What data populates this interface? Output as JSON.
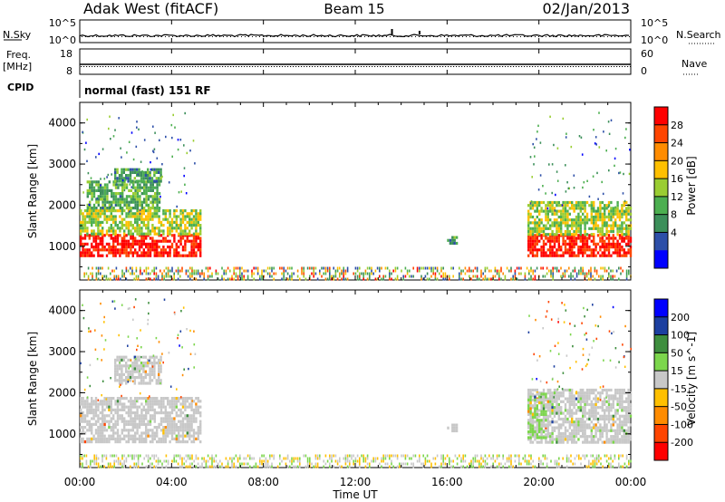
{
  "header": {
    "station": "Adak West (fitACF)",
    "beam": "Beam 15",
    "date": "02/Jan/2013"
  },
  "summary": {
    "nsky": {
      "label": "N.Sky",
      "ticks": [
        "10^5",
        "10^0"
      ]
    },
    "nsearch": {
      "label": "N.Search",
      "ticks": [
        "10^5",
        "10^0"
      ]
    },
    "freq": {
      "label": "Freq.",
      "unit": "[MHz]",
      "ticks": [
        "18",
        "8"
      ]
    },
    "nave": {
      "label": "Nave",
      "ticks": [
        "60",
        "0"
      ]
    },
    "cpid": {
      "label": "CPID",
      "program": "normal (fast) 151 RF"
    }
  },
  "chart_data": [
    {
      "type": "heatmap",
      "name": "power",
      "ylabel": "Slant Range [km]",
      "ylim": [
        180,
        4500
      ],
      "yticks": [
        "1000",
        "2000",
        "3000",
        "4000"
      ],
      "colorbar_label": "Power [dB]",
      "colorbar_ticks": [
        "4",
        "8",
        "12",
        "16",
        "20",
        "24",
        "28"
      ],
      "colorbar_range": [
        0,
        32
      ],
      "colors": [
        "#0000ff",
        "#2d4fa8",
        "#3c8f5a",
        "#4caf50",
        "#9acd32",
        "#ffc000",
        "#ff8c00",
        "#ff4500",
        "#ff0000"
      ],
      "regions": [
        {
          "t": [
            0,
            5.3
          ],
          "r": [
            800,
            1300
          ],
          "level": 30
        },
        {
          "t": [
            0,
            5.3
          ],
          "r": [
            1300,
            1900
          ],
          "level": 16
        },
        {
          "t": [
            0.3,
            3.5
          ],
          "r": [
            1900,
            2600
          ],
          "level": 12
        },
        {
          "t": [
            1.5,
            3.5
          ],
          "r": [
            2600,
            2900
          ],
          "level": 10
        },
        {
          "t": [
            19.5,
            24
          ],
          "r": [
            800,
            1300
          ],
          "level": 30
        },
        {
          "t": [
            19.5,
            24
          ],
          "r": [
            1300,
            2100
          ],
          "level": 16
        },
        {
          "t": [
            16,
            16.4
          ],
          "r": [
            1050,
            1250
          ],
          "level": 10
        }
      ]
    },
    {
      "type": "heatmap",
      "name": "velocity",
      "ylabel": "Slant Range [km]",
      "ylim": [
        180,
        4500
      ],
      "yticks": [
        "1000",
        "2000",
        "3000",
        "4000"
      ],
      "colorbar_label": "Velocity [m s^-1]",
      "colorbar_ticks": [
        "200",
        "100",
        "50",
        "15",
        "-15",
        "-50",
        "-100",
        "-200"
      ],
      "colorbar_range": [
        -250,
        250
      ],
      "colors": [
        "#0000ff",
        "#1c3fa0",
        "#3e8e3e",
        "#7cd64c",
        "#c8c8c8",
        "#ffc000",
        "#ff8c00",
        "#ff4500",
        "#ff0000"
      ],
      "regions": [
        {
          "t": [
            0,
            5.3
          ],
          "r": [
            800,
            1900
          ],
          "value": 0
        },
        {
          "t": [
            1.5,
            3.5
          ],
          "r": [
            2200,
            2900
          ],
          "value": 0
        },
        {
          "t": [
            19.5,
            24
          ],
          "r": [
            800,
            2100
          ],
          "value": 10
        },
        {
          "t": [
            19.5,
            20.3
          ],
          "r": [
            900,
            2000
          ],
          "value": 30
        },
        {
          "t": [
            16,
            16.4
          ],
          "r": [
            1050,
            1250
          ],
          "value": 0
        }
      ]
    }
  ],
  "time_axis": {
    "ticks": [
      "00:00",
      "04:00",
      "08:00",
      "12:00",
      "16:00",
      "20:00",
      "00:00"
    ],
    "label": "Time UT"
  }
}
